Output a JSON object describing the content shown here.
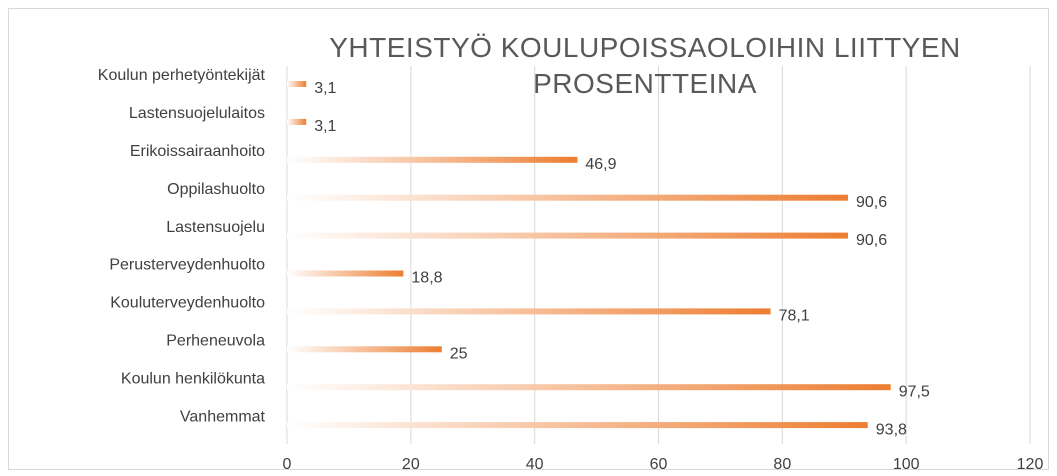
{
  "chart_data": {
    "type": "barh",
    "title": "YHTEISTYÖ KOULUPOISSAOLOIHIN LIITTYEN PROSENTTEINA",
    "categories": [
      "Koulun perhetyöntekijät",
      "Lastensuojelulaitos",
      "Erikoissairaanhoito",
      "Oppilashuolto",
      "Lastensuojelu",
      "Perusterveydenhuolto",
      "Kouluterveydenhuolto",
      "Perheneuvola",
      "Koulun henkilökunta",
      "Vanhemmat"
    ],
    "values": [
      3.1,
      3.1,
      46.9,
      90.6,
      90.6,
      18.8,
      78.1,
      25,
      97.5,
      93.8
    ],
    "value_labels": [
      "3,1",
      "3,1",
      "46,9",
      "90,6",
      "90,6",
      "18,8",
      "78,1",
      "25",
      "97,5",
      "93,8"
    ],
    "color": "#ed7d31",
    "xlim": [
      0,
      120
    ],
    "xticks": [
      0,
      20,
      40,
      60,
      80,
      100,
      120
    ],
    "grid": true
  }
}
